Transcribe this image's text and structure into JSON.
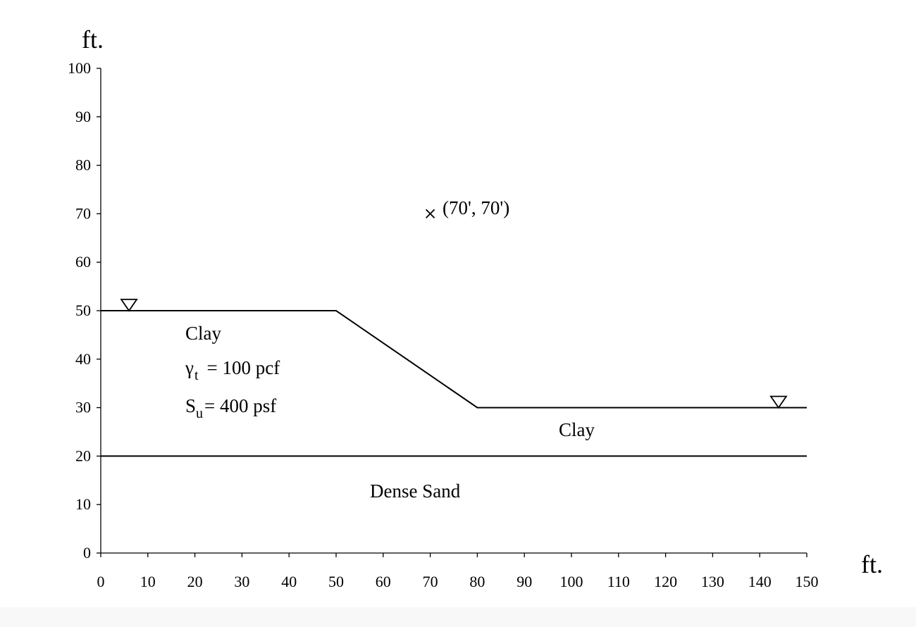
{
  "chart_data": {
    "type": "diagram",
    "x_unit": "ft.",
    "y_unit": "ft.",
    "xlim": [
      0,
      150
    ],
    "ylim": [
      0,
      100
    ],
    "x_ticks": [
      0,
      10,
      20,
      30,
      40,
      50,
      60,
      70,
      80,
      90,
      100,
      110,
      120,
      130,
      140,
      150
    ],
    "y_ticks": [
      0,
      10,
      20,
      30,
      40,
      50,
      60,
      70,
      80,
      90,
      100
    ],
    "ground_surface": [
      [
        0,
        50
      ],
      [
        50,
        50
      ],
      [
        80,
        30
      ],
      [
        150,
        30
      ]
    ],
    "layer_boundaries": [
      {
        "name": "clay-sand-boundary",
        "points": [
          [
            0,
            20
          ],
          [
            150,
            20
          ]
        ]
      }
    ],
    "water_table_markers": [
      [
        6,
        50
      ],
      [
        144,
        30
      ]
    ],
    "point_marker": {
      "x": 70,
      "y": 70,
      "label": "(70', 70')"
    },
    "layers": {
      "upper_clay": {
        "name": "Clay",
        "unit_weight_symbol": "γ",
        "unit_weight_subscript": "t",
        "unit_weight_value": "= 100 pcf",
        "strength_symbol": "S",
        "strength_subscript": "u",
        "strength_value": "= 400 psf"
      },
      "lower_clay": {
        "name": "Clay"
      },
      "sand": {
        "name": "Dense Sand"
      }
    }
  }
}
